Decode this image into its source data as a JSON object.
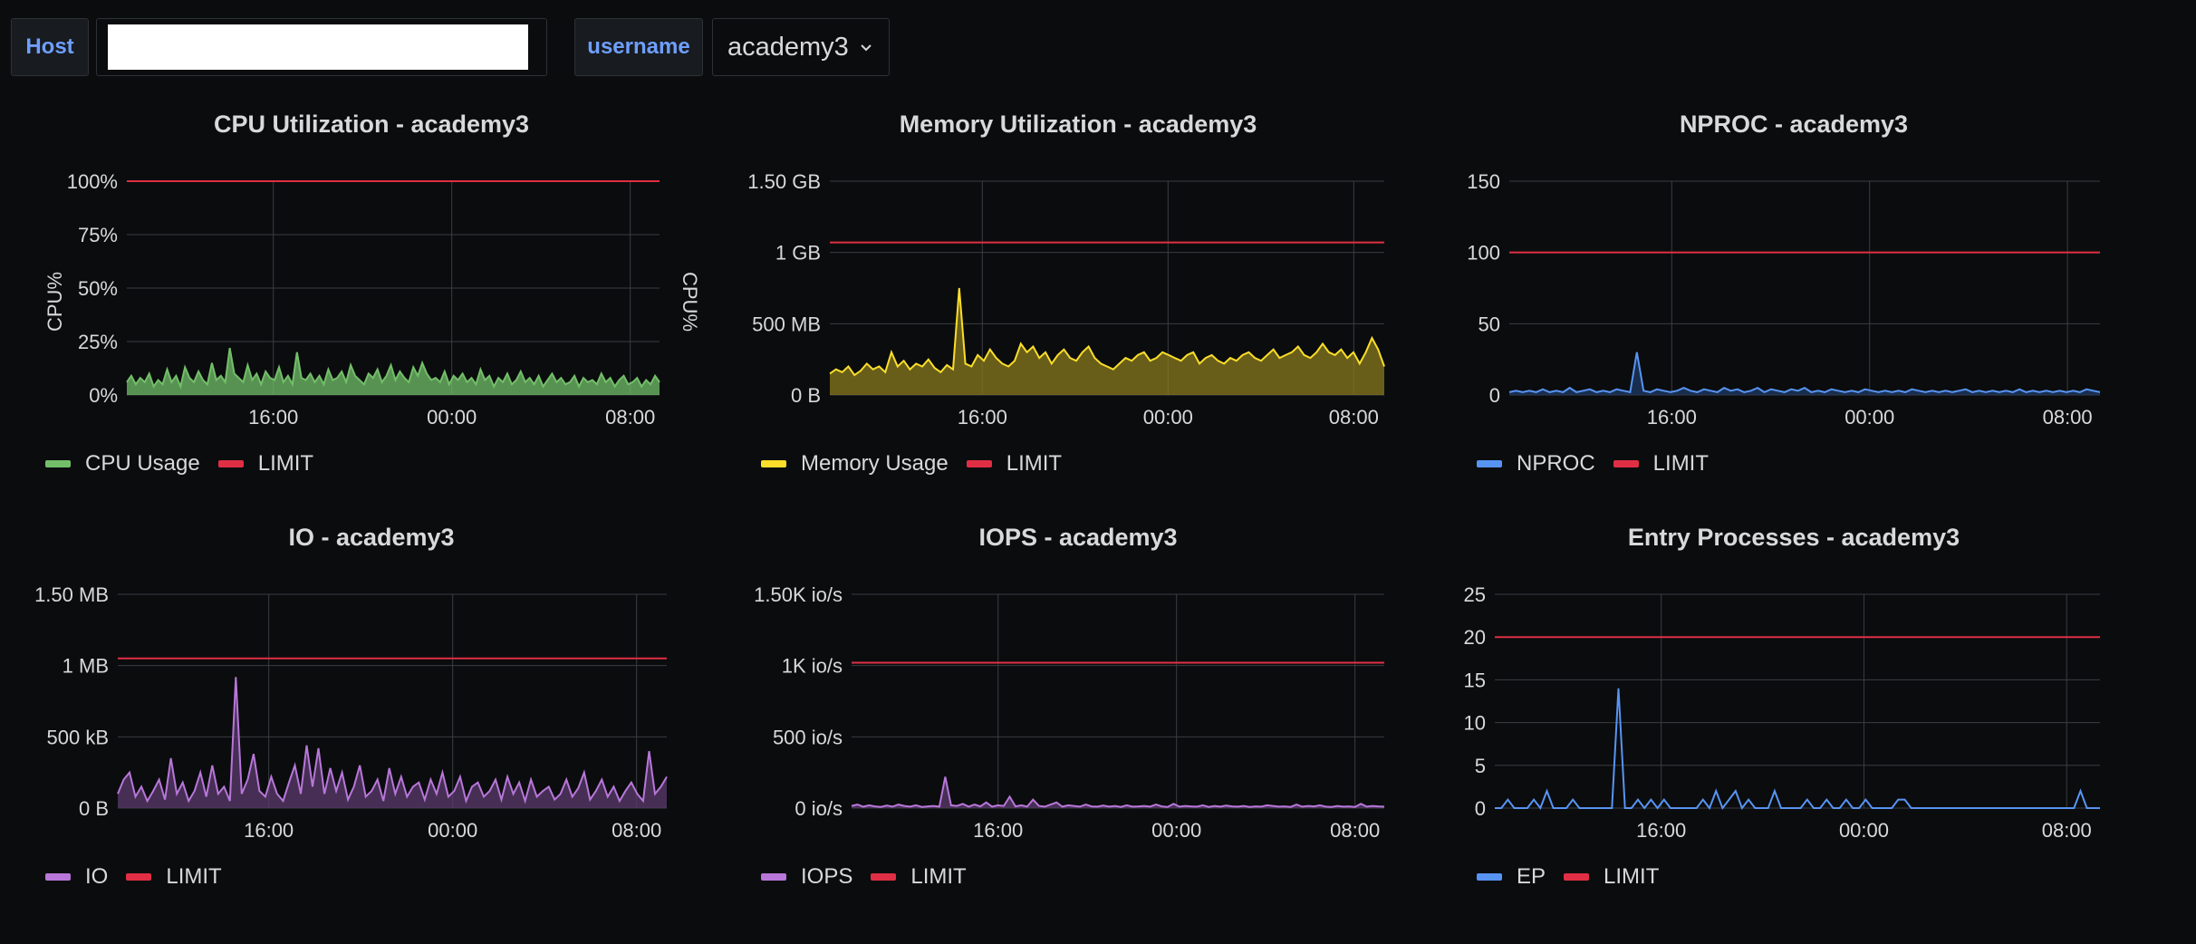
{
  "variables": {
    "host_label": "Host",
    "host_value": "",
    "username_label": "username",
    "username_value": "academy3"
  },
  "colors": {
    "background": "#0b0c0e",
    "grid": "#3a3d42",
    "limit": "#e02f44",
    "cpu": "#73bf69",
    "memory": "#fade2a",
    "nproc": "#5794f2",
    "io": "#b877d9",
    "iops": "#b877d9",
    "ep": "#5794f2"
  },
  "chart_data": [
    {
      "type": "area",
      "title": "CPU Utilization - academy3",
      "ylabel": "CPU%",
      "ylabel_right": "CPU%",
      "yticks": [
        "100%",
        "75%",
        "50%",
        "25%",
        "0%"
      ],
      "ylim": [
        0,
        100
      ],
      "xticks": [
        "16:00",
        "00:00",
        "08:00"
      ],
      "xtick_positions": [
        0.275,
        0.61,
        0.945
      ],
      "legend": [
        {
          "name": "CPU Usage",
          "color": "#73bf69"
        },
        {
          "name": "LIMIT",
          "color": "#e02f44"
        }
      ],
      "limit": 100,
      "series": [
        {
          "name": "CPU Usage",
          "color": "#73bf69",
          "fill": "#73bf69",
          "values": [
            6,
            9,
            5,
            8,
            6,
            10,
            4,
            7,
            5,
            12,
            6,
            9,
            4,
            13,
            8,
            6,
            11,
            7,
            5,
            15,
            7,
            9,
            6,
            22,
            10,
            8,
            6,
            14,
            7,
            10,
            5,
            11,
            8,
            7,
            13,
            6,
            9,
            5,
            20,
            8,
            7,
            10,
            6,
            9,
            5,
            12,
            7,
            8,
            11,
            6,
            14,
            9,
            7,
            5,
            10,
            8,
            12,
            6,
            9,
            14,
            7,
            11,
            8,
            6,
            13,
            9,
            15,
            10,
            7,
            8,
            6,
            11,
            5,
            9,
            7,
            10,
            6,
            8,
            5,
            12,
            7,
            9,
            4,
            8,
            6,
            10,
            5,
            7,
            11,
            6,
            8,
            5,
            9,
            4,
            7,
            10,
            6,
            8,
            5,
            6,
            9,
            4,
            8,
            6,
            7,
            5,
            10,
            6,
            8,
            4,
            7,
            9,
            5,
            6,
            8,
            4,
            7,
            5,
            9,
            6
          ]
        }
      ]
    },
    {
      "type": "area",
      "title": "Memory Utilization - academy3",
      "yticks": [
        "1.50 GB",
        "1 GB",
        "500 MB",
        "0 B"
      ],
      "ylim": [
        0,
        1.5
      ],
      "xticks": [
        "16:00",
        "00:00",
        "08:00"
      ],
      "xtick_positions": [
        0.275,
        0.61,
        0.945
      ],
      "legend": [
        {
          "name": "Memory Usage",
          "color": "#fade2a"
        },
        {
          "name": "LIMIT",
          "color": "#e02f44"
        }
      ],
      "limit": 1.07,
      "series": [
        {
          "name": "Memory Usage",
          "color": "#fade2a",
          "fill": "#8a7a1e",
          "values": [
            0.15,
            0.18,
            0.16,
            0.2,
            0.14,
            0.17,
            0.22,
            0.18,
            0.2,
            0.16,
            0.3,
            0.2,
            0.24,
            0.18,
            0.22,
            0.2,
            0.25,
            0.19,
            0.16,
            0.21,
            0.18,
            0.75,
            0.22,
            0.2,
            0.28,
            0.24,
            0.32,
            0.26,
            0.22,
            0.2,
            0.24,
            0.36,
            0.3,
            0.34,
            0.26,
            0.3,
            0.22,
            0.28,
            0.32,
            0.26,
            0.24,
            0.3,
            0.34,
            0.26,
            0.22,
            0.2,
            0.18,
            0.22,
            0.26,
            0.24,
            0.28,
            0.3,
            0.24,
            0.26,
            0.3,
            0.28,
            0.26,
            0.24,
            0.28,
            0.3,
            0.22,
            0.26,
            0.28,
            0.24,
            0.22,
            0.26,
            0.24,
            0.28,
            0.3,
            0.26,
            0.24,
            0.28,
            0.32,
            0.26,
            0.28,
            0.3,
            0.34,
            0.28,
            0.26,
            0.3,
            0.36,
            0.3,
            0.28,
            0.32,
            0.26,
            0.3,
            0.22,
            0.3,
            0.4,
            0.32,
            0.2
          ]
        }
      ]
    },
    {
      "type": "area",
      "title": "NPROC - academy3",
      "yticks": [
        "150",
        "100",
        "50",
        "0"
      ],
      "ylim": [
        0,
        150
      ],
      "xticks": [
        "16:00",
        "00:00",
        "08:00"
      ],
      "xtick_positions": [
        0.275,
        0.61,
        0.945
      ],
      "legend": [
        {
          "name": "NPROC",
          "color": "#5794f2"
        },
        {
          "name": "LIMIT",
          "color": "#e02f44"
        }
      ],
      "limit": 100,
      "series": [
        {
          "name": "NPROC",
          "color": "#5794f2",
          "fill": "#1f3a66",
          "values": [
            2,
            3,
            2,
            3,
            2,
            4,
            2,
            3,
            2,
            5,
            2,
            3,
            4,
            2,
            3,
            2,
            4,
            3,
            2,
            30,
            3,
            2,
            4,
            3,
            2,
            3,
            5,
            3,
            2,
            4,
            3,
            2,
            5,
            3,
            4,
            2,
            3,
            5,
            2,
            4,
            3,
            2,
            4,
            3,
            5,
            2,
            3,
            2,
            4,
            3,
            2,
            3,
            2,
            4,
            3,
            2,
            3,
            2,
            3,
            2,
            4,
            3,
            2,
            3,
            2,
            3,
            2,
            3,
            4,
            2,
            3,
            2,
            3,
            2,
            3,
            2,
            4,
            2,
            3,
            2,
            3,
            2,
            3,
            2,
            3,
            2,
            4,
            3,
            2
          ]
        }
      ]
    },
    {
      "type": "area",
      "title": "IO - academy3",
      "yticks": [
        "1.50 MB",
        "1 MB",
        "500 kB",
        "0 B"
      ],
      "ylim": [
        0,
        1.5
      ],
      "xticks": [
        "16:00",
        "00:00",
        "08:00"
      ],
      "xtick_positions": [
        0.275,
        0.61,
        0.945
      ],
      "legend": [
        {
          "name": "IO",
          "color": "#b877d9"
        },
        {
          "name": "LIMIT",
          "color": "#e02f44"
        }
      ],
      "limit": 1.05,
      "series": [
        {
          "name": "IO",
          "color": "#b877d9",
          "fill": "#5b3a6e",
          "values": [
            0.1,
            0.2,
            0.25,
            0.08,
            0.15,
            0.05,
            0.12,
            0.2,
            0.06,
            0.35,
            0.1,
            0.18,
            0.05,
            0.12,
            0.25,
            0.08,
            0.3,
            0.1,
            0.15,
            0.05,
            0.92,
            0.1,
            0.2,
            0.38,
            0.12,
            0.08,
            0.22,
            0.1,
            0.05,
            0.18,
            0.3,
            0.1,
            0.44,
            0.15,
            0.42,
            0.1,
            0.28,
            0.12,
            0.25,
            0.06,
            0.15,
            0.3,
            0.08,
            0.12,
            0.2,
            0.05,
            0.28,
            0.1,
            0.22,
            0.08,
            0.15,
            0.18,
            0.06,
            0.2,
            0.1,
            0.25,
            0.08,
            0.12,
            0.22,
            0.05,
            0.15,
            0.18,
            0.08,
            0.12,
            0.2,
            0.06,
            0.22,
            0.1,
            0.18,
            0.05,
            0.2,
            0.08,
            0.12,
            0.15,
            0.06,
            0.1,
            0.2,
            0.08,
            0.14,
            0.25,
            0.06,
            0.12,
            0.2,
            0.08,
            0.15,
            0.05,
            0.12,
            0.18,
            0.1,
            0.05,
            0.4,
            0.1,
            0.15,
            0.22
          ]
        }
      ]
    },
    {
      "type": "area",
      "title": "IOPS - academy3",
      "yticks": [
        "1.50K io/s",
        "1K io/s",
        "500 io/s",
        "0 io/s"
      ],
      "ylim": [
        0,
        1500
      ],
      "xticks": [
        "16:00",
        "00:00",
        "08:00"
      ],
      "xtick_positions": [
        0.275,
        0.61,
        0.945
      ],
      "legend": [
        {
          "name": "IOPS",
          "color": "#b877d9"
        },
        {
          "name": "LIMIT",
          "color": "#e02f44"
        }
      ],
      "limit": 1020,
      "series": [
        {
          "name": "IOPS",
          "color": "#b877d9",
          "fill": "#5b3a6e",
          "values": [
            15,
            25,
            10,
            20,
            12,
            8,
            18,
            10,
            25,
            15,
            10,
            20,
            8,
            12,
            15,
            10,
            220,
            20,
            15,
            30,
            10,
            25,
            12,
            40,
            10,
            20,
            15,
            80,
            12,
            20,
            10,
            60,
            15,
            10,
            25,
            40,
            10,
            20,
            15,
            10,
            25,
            12,
            10,
            18,
            10,
            15,
            8,
            20,
            10,
            12,
            15,
            10,
            25,
            12,
            8,
            30,
            10,
            15,
            12,
            10,
            20,
            8,
            15,
            10,
            18,
            12,
            10,
            15,
            8,
            12,
            10,
            20,
            15,
            10,
            12,
            8,
            25,
            10,
            15,
            12,
            20,
            10,
            8,
            15,
            10,
            12,
            8,
            30,
            10,
            15,
            12,
            10
          ]
        }
      ]
    },
    {
      "type": "line",
      "title": "Entry Processes - academy3",
      "yticks": [
        "25",
        "20",
        "15",
        "10",
        "5",
        "0"
      ],
      "ylim": [
        0,
        25
      ],
      "xticks": [
        "16:00",
        "00:00",
        "08:00"
      ],
      "xtick_positions": [
        0.275,
        0.61,
        0.945
      ],
      "legend": [
        {
          "name": "EP",
          "color": "#5794f2"
        },
        {
          "name": "LIMIT",
          "color": "#e02f44"
        }
      ],
      "limit": 20,
      "series": [
        {
          "name": "EP",
          "color": "#5794f2",
          "fill": "none",
          "values": [
            0,
            0,
            1,
            0,
            0,
            0,
            1,
            0,
            2,
            0,
            0,
            0,
            1,
            0,
            0,
            0,
            0,
            0,
            0,
            14,
            0,
            0,
            1,
            0,
            1,
            0,
            1,
            0,
            0,
            0,
            0,
            0,
            1,
            0,
            2,
            0,
            1,
            2,
            0,
            1,
            0,
            0,
            0,
            2,
            0,
            0,
            0,
            0,
            1,
            0,
            0,
            1,
            0,
            0,
            1,
            0,
            0,
            1,
            0,
            0,
            0,
            0,
            1,
            1,
            0,
            0,
            0,
            0,
            0,
            0,
            0,
            0,
            0,
            0,
            0,
            0,
            0,
            0,
            0,
            0,
            0,
            0,
            0,
            0,
            0,
            0,
            0,
            0,
            0,
            0,
            2,
            0,
            0,
            0
          ]
        }
      ]
    }
  ]
}
